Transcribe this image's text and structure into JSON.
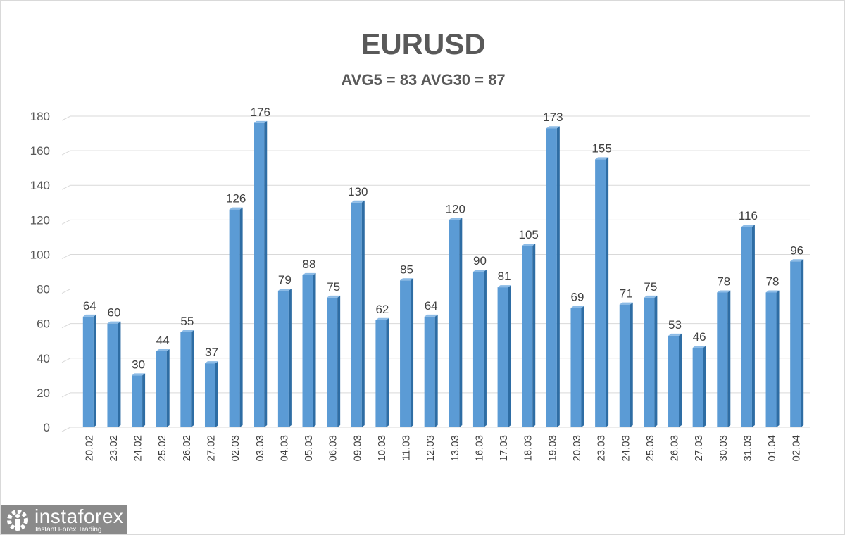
{
  "chart_data": {
    "type": "bar",
    "title": "EURUSD",
    "subtitle": "AVG5 = 83 AVG30 = 87",
    "xlabel": "",
    "ylabel": "",
    "ylim": [
      0,
      180
    ],
    "yticks": [
      0,
      20,
      40,
      60,
      80,
      100,
      120,
      140,
      160,
      180
    ],
    "grid": true,
    "categories": [
      "20.02",
      "23.02",
      "24.02",
      "25.02",
      "26.02",
      "27.02",
      "02.03",
      "03.03",
      "04.03",
      "05.03",
      "06.03",
      "09.03",
      "10.03",
      "11.03",
      "12.03",
      "13.03",
      "16.03",
      "17.03",
      "18.03",
      "19.03",
      "20.03",
      "23.03",
      "24.03",
      "25.03",
      "26.03",
      "27.03",
      "30.03",
      "31.03",
      "01.04",
      "02.04"
    ],
    "values": [
      64,
      60,
      30,
      44,
      55,
      37,
      126,
      176,
      79,
      88,
      75,
      130,
      62,
      85,
      64,
      120,
      90,
      81,
      105,
      173,
      69,
      155,
      71,
      75,
      53,
      46,
      78,
      116,
      78,
      96
    ],
    "bar_color": "#5b9bd5"
  },
  "logo": {
    "name": "instaforex",
    "tagline": "Instant Forex Trading"
  }
}
